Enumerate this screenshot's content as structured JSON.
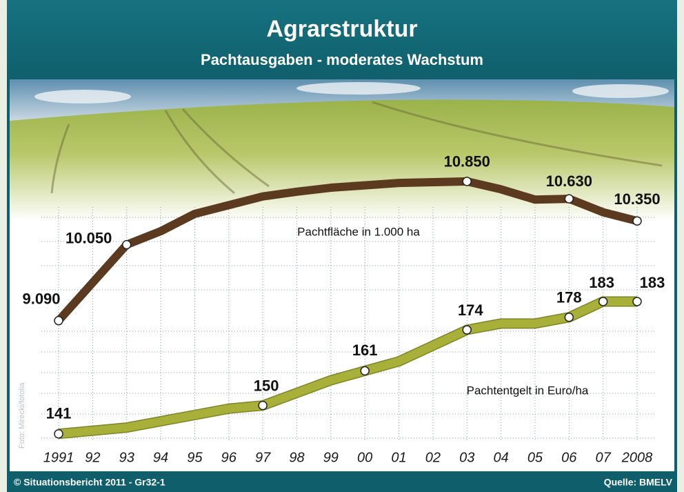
{
  "chart_data": {
    "type": "line",
    "title": "Agrarstruktur",
    "subtitle": "Pachtausgaben - moderates Wachstum",
    "source": "Quelle: BMELV",
    "footnote": "© Situationsbericht 2011 - Gr32-1",
    "photo_credit": "Foto: Mirecki/fotolia",
    "categories": [
      "1991",
      "92",
      "93",
      "94",
      "95",
      "96",
      "97",
      "98",
      "99",
      "00",
      "01",
      "02",
      "03",
      "04",
      "05",
      "06",
      "07",
      "2008"
    ],
    "ylim": [
      7500,
      12000
    ],
    "y2lim": [
      137,
      250
    ],
    "grid": true,
    "series": [
      {
        "name": "Pachtfläche in 1.000 ha",
        "color": "#5b3a1f",
        "values": [
          9090,
          9570,
          10050,
          10220,
          10440,
          10550,
          10660,
          10720,
          10770,
          10800,
          10830,
          10840,
          10850,
          10750,
          10620,
          10630,
          10460,
          10350
        ],
        "value_labels": [
          "9.090",
          null,
          "10.050",
          null,
          null,
          null,
          null,
          null,
          null,
          null,
          null,
          null,
          "10.850",
          null,
          null,
          "10.630",
          null,
          "10.350"
        ]
      },
      {
        "name": "Pachtentgelt in Euro/ha",
        "color": "#a8b03a",
        "axis": "y2",
        "values": [
          141,
          142,
          143,
          145,
          147,
          149,
          150,
          154,
          158,
          161,
          164,
          169,
          174,
          176,
          176,
          178,
          183,
          183
        ],
        "value_labels": [
          "141",
          null,
          null,
          null,
          null,
          null,
          "150",
          null,
          null,
          "161",
          null,
          null,
          "174",
          null,
          null,
          "178",
          "183",
          "183"
        ]
      }
    ]
  }
}
